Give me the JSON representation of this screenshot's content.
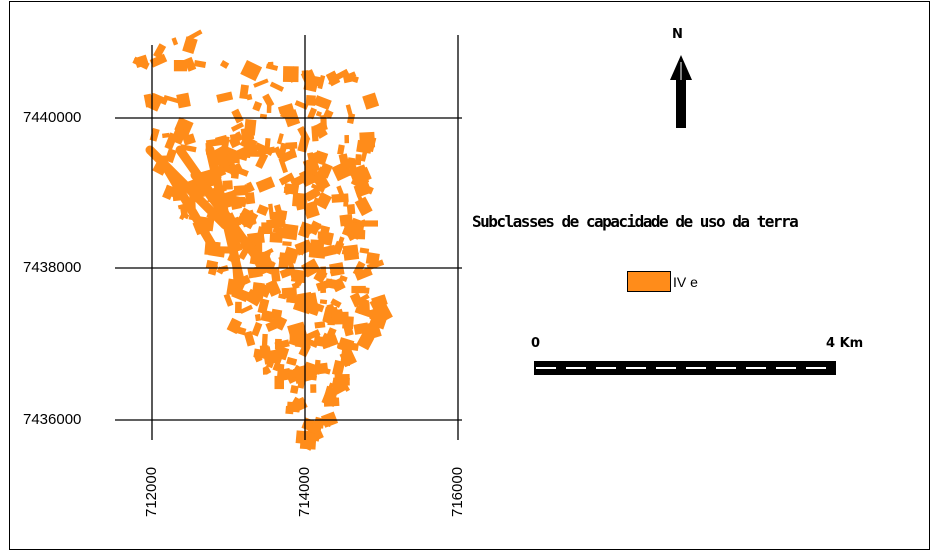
{
  "map": {
    "y_ticks": [
      "7440000",
      "7438000",
      "7436000"
    ],
    "x_ticks": [
      "712000",
      "714000",
      "716000"
    ],
    "north_label": "N",
    "legend_title": "Subclasses de capacidade de uso da terra",
    "legend_items": [
      {
        "label": "IV  e",
        "color": "#ff8c1a"
      }
    ],
    "scale_bar": {
      "start_label": "0",
      "end_label": "4 Km"
    },
    "patch_color": "#ff8c1a"
  }
}
